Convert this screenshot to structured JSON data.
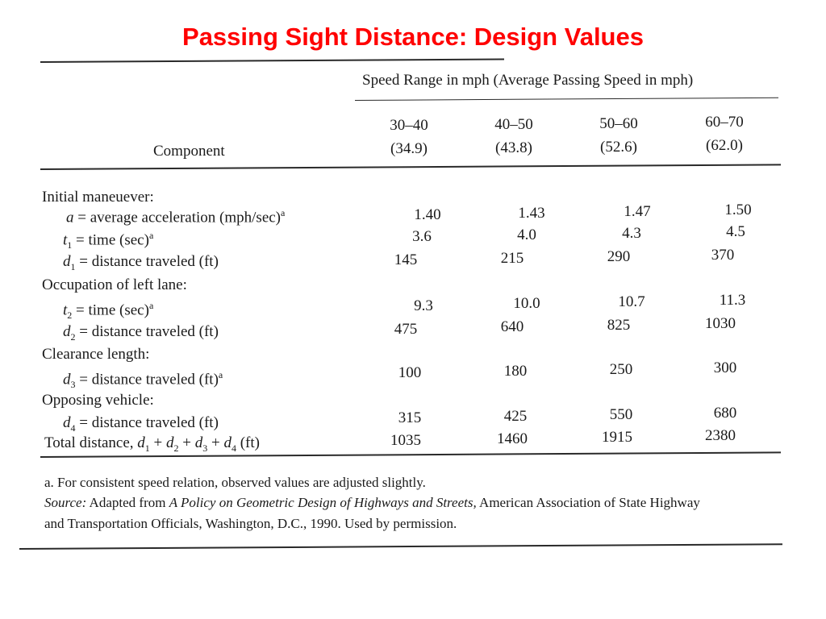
{
  "slide": {
    "title": "Passing Sight Distance: Design Values"
  },
  "table": {
    "header": {
      "group": "Speed Range in mph (Average Passing Speed in mph)",
      "component": "Component",
      "ranges": [
        "30–40",
        "40–50",
        "50–60",
        "60–70"
      ],
      "averages": [
        "(34.9)",
        "(43.8)",
        "(52.6)",
        "(62.0)"
      ]
    },
    "sections": [
      {
        "title": "Initial maneuever:",
        "rows": [
          {
            "var": "a",
            "sub": "",
            "desc": " = average acceleration (mph/sec)",
            "note": "a",
            "values": [
              "1.40",
              "1.43",
              "1.47",
              "1.50"
            ]
          },
          {
            "var": "t",
            "sub": "1",
            "desc": " = time (sec)",
            "note": "a",
            "values": [
              "3.6",
              "4.0",
              "4.3",
              "4.5"
            ]
          },
          {
            "var": "d",
            "sub": "1",
            "desc": " = distance traveled (ft)",
            "note": "",
            "values": [
              "145",
              "215",
              "290",
              "370"
            ]
          }
        ]
      },
      {
        "title": "Occupation of left lane:",
        "rows": [
          {
            "var": "t",
            "sub": "2",
            "desc": " = time (sec)",
            "note": "a",
            "values": [
              "9.3",
              "10.0",
              "10.7",
              "11.3"
            ]
          },
          {
            "var": "d",
            "sub": "2",
            "desc": " = distance traveled (ft)",
            "note": "",
            "values": [
              "475",
              "640",
              "825",
              "1030"
            ]
          }
        ]
      },
      {
        "title": "Clearance length:",
        "rows": [
          {
            "var": "d",
            "sub": "3",
            "desc": " = distance traveled (ft)",
            "note": "a",
            "values": [
              "100",
              "180",
              "250",
              "300"
            ]
          }
        ]
      },
      {
        "title": "Opposing vehicle:",
        "rows": [
          {
            "var": "d",
            "sub": "4",
            "desc": " = distance traveled (ft)",
            "note": "",
            "values": [
              "315",
              "425",
              "550",
              "680"
            ]
          }
        ]
      }
    ],
    "total": {
      "label": "Total distance, ",
      "formula_tail": " (ft)",
      "values": [
        "1035",
        "1460",
        "1915",
        "2380"
      ]
    }
  },
  "footnotes": {
    "a": "a. For consistent speed relation, observed values are adjusted slightly.",
    "source_label": "Source:",
    "source_pre": " Adapted from ",
    "source_title": "A Policy on Geometric Design of Highways and Streets,",
    "source_post": " American Association of State Highway",
    "source_line2": "and Transportation Officials, Washington, D.C., 1990. Used by permission."
  }
}
